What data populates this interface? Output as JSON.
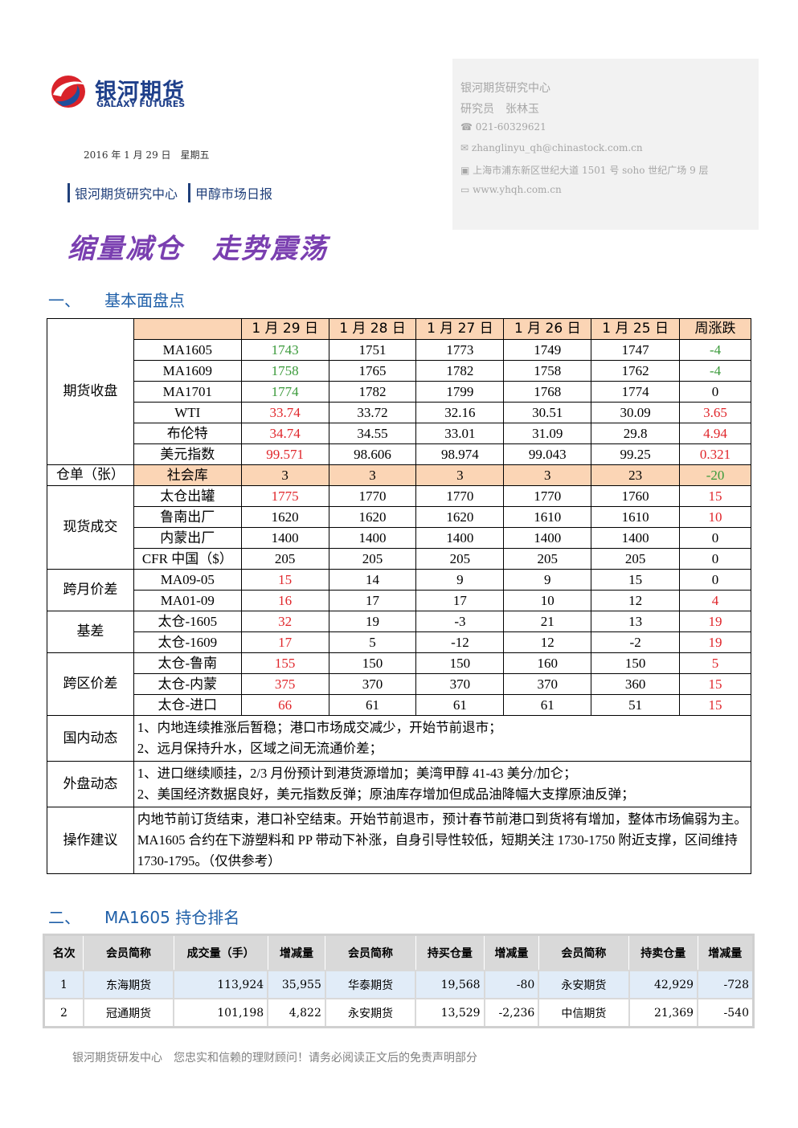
{
  "header": {
    "logo_cn": "银河期货",
    "logo_en": "GALAXY FUTURES",
    "date": "2016 年 1 月 29 日　星期五",
    "dept": "银河期货研究中心",
    "report": "甲醇市场日报"
  },
  "contact": {
    "org": "银河期货研究中心",
    "analyst": "研究员　张林玉",
    "phone": "021-60329621",
    "email": "zhanglinyu_qh@chinastock.com.cn",
    "address": "上海市浦东新区世纪大道 1501 号 soho 世纪广场 9 层",
    "web": "www.yhqh.com.cn"
  },
  "title": "缩量减仓　走势震荡",
  "section1": {
    "number": "一、",
    "title": "基本面盘点"
  },
  "table1": {
    "columns": [
      "1 月 29 日",
      "1 月 28 日",
      "1 月 27 日",
      "1 月 26 日",
      "1 月 25 日",
      "周涨跌"
    ],
    "groups": [
      {
        "label": "期货收盘",
        "rows": [
          {
            "name": "MA1605",
            "values": [
              1743,
              1751,
              1773,
              1749,
              1747,
              -4
            ],
            "first_color": "#3a9a3a",
            "change_color": "#3a9a3a"
          },
          {
            "name": "MA1609",
            "values": [
              1758,
              1765,
              1782,
              1758,
              1762,
              -4
            ],
            "first_color": "#3a9a3a",
            "change_color": "#3a9a3a"
          },
          {
            "name": "MA1701",
            "values": [
              1774,
              1782,
              1799,
              1768,
              1774,
              0
            ],
            "first_color": "#3a9a3a",
            "change_color": "#000000"
          },
          {
            "name": "WTI",
            "values": [
              33.74,
              33.72,
              32.16,
              30.51,
              30.09,
              3.65
            ],
            "first_color": "#e0262b",
            "change_color": "#e0262b"
          },
          {
            "name": "布伦特",
            "values": [
              34.74,
              34.55,
              33.01,
              31.09,
              29.8,
              4.94
            ],
            "first_color": "#e0262b",
            "change_color": "#e0262b"
          },
          {
            "name": "美元指数",
            "values": [
              99.571,
              98.606,
              98.974,
              99.043,
              99.25,
              0.321
            ],
            "first_color": "#e0262b",
            "change_color": "#e0262b"
          }
        ]
      },
      {
        "label": "仓单（张）",
        "rows": [
          {
            "name": "社会库",
            "values": [
              3,
              3,
              3,
              3,
              23,
              -20
            ],
            "first_color": "#000000",
            "change_color": "#3a9a3a",
            "background": "#fbd5b5"
          }
        ]
      },
      {
        "label": "现货成交",
        "rows": [
          {
            "name": "太仓出罐",
            "values": [
              1775,
              1770,
              1770,
              1770,
              1760,
              15
            ],
            "first_color": "#e0262b",
            "change_color": "#e0262b"
          },
          {
            "name": "鲁南出厂",
            "values": [
              1620,
              1620,
              1620,
              1610,
              1610,
              10
            ],
            "first_color": "#000000",
            "change_color": "#e0262b"
          },
          {
            "name": "内蒙出厂",
            "values": [
              1400,
              1400,
              1400,
              1400,
              1400,
              0
            ],
            "first_color": "#000000",
            "change_color": "#000000"
          },
          {
            "name": "CFR 中国（$）",
            "values": [
              205,
              205,
              205,
              205,
              205,
              0
            ],
            "first_color": "#000000",
            "change_color": "#000000"
          }
        ]
      },
      {
        "label": "跨月价差",
        "rows": [
          {
            "name": "MA09-05",
            "values": [
              15,
              14,
              9,
              9,
              15,
              0
            ],
            "first_color": "#e0262b",
            "change_color": "#000000"
          },
          {
            "name": "MA01-09",
            "values": [
              16,
              17,
              17,
              10,
              12,
              4
            ],
            "first_color": "#e0262b",
            "change_color": "#e0262b"
          }
        ]
      },
      {
        "label": "基差",
        "rows": [
          {
            "name": "太仓-1605",
            "values": [
              32,
              19,
              -3,
              21,
              13,
              19
            ],
            "first_color": "#e0262b",
            "change_color": "#e0262b"
          },
          {
            "name": "太仓-1609",
            "values": [
              17,
              5,
              -12,
              12,
              -2,
              19
            ],
            "first_color": "#e0262b",
            "change_color": "#e0262b"
          }
        ]
      },
      {
        "label": "跨区价差",
        "rows": [
          {
            "name": "太仓-鲁南",
            "values": [
              155,
              150,
              150,
              160,
              150,
              5
            ],
            "first_color": "#e0262b",
            "change_color": "#e0262b"
          },
          {
            "name": "太仓-内蒙",
            "values": [
              375,
              370,
              370,
              370,
              360,
              15
            ],
            "first_color": "#e0262b",
            "change_color": "#e0262b"
          },
          {
            "name": "太仓-进口",
            "values": [
              66,
              61,
              61,
              61,
              51,
              15
            ],
            "first_color": "#e0262b",
            "change_color": "#e0262b"
          }
        ]
      }
    ],
    "notes": [
      {
        "label": "国内动态",
        "lines": [
          "1、内地连续推涨后暂稳；港口市场成交减少，开始节前退市；",
          "2、远月保持升水，区域之间无流通价差；"
        ]
      },
      {
        "label": "外盘动态",
        "lines": [
          "1、进口继续顺挂，2/3 月份预计到港货源增加；美湾甲醇 41-43 美分/加仑；",
          "2、美国经济数据良好，美元指数反弹；原油库存增加但成品油降幅大支撑原油反弹；"
        ]
      },
      {
        "label": "操作建议",
        "lines": [
          "内地节前订货结束，港口补空结束。开始节前退市，预计春节前港口到货将有增加，整体市场偏弱为主。MA1605 合约在下游塑料和 PP 带动下补涨，自身引导性较低，短期关注 1730-1750 附近支撑，区间维持 1730-1795。（仅供参考）"
        ]
      }
    ]
  },
  "section2": {
    "number": "二、",
    "title": "MA1605 持仓排名"
  },
  "table2": {
    "columns": [
      "名次",
      "会员简称",
      "成交量（手）",
      "增减量",
      "会员简称",
      "持买仓量",
      "增减量",
      "会员简称",
      "持卖仓量",
      "增减量"
    ],
    "rows": [
      [
        "1",
        "东海期货",
        "113,924",
        "35,955",
        "华泰期货",
        "19,568",
        "-80",
        "永安期货",
        "42,929",
        "-728"
      ],
      [
        "2",
        "冠通期货",
        "101,198",
        "4,822",
        "永安期货",
        "13,529",
        "-2,236",
        "中信期货",
        "21,369",
        "-540"
      ]
    ]
  },
  "footer": "银河期货研发中心　您忠实和信赖的理财顾问！请务必阅读正文后的免责声明部分"
}
